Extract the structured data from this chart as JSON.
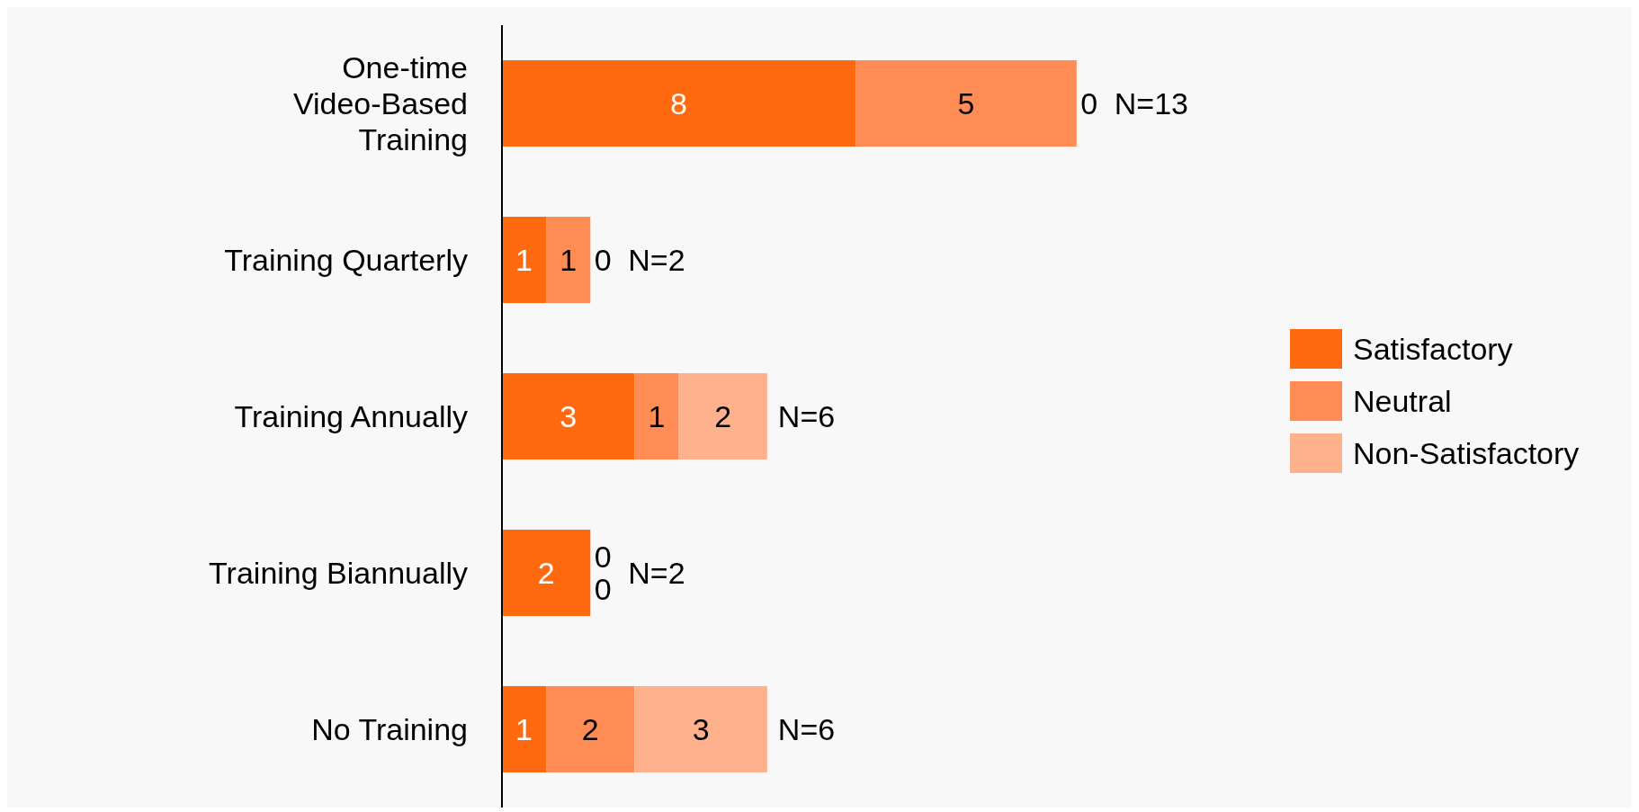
{
  "chart_data": {
    "type": "bar",
    "orientation": "horizontal",
    "stacked": true,
    "categories": [
      "One-time Video-Based Training",
      "Training Quarterly",
      "Training Annually",
      "Training Biannually",
      "No Training"
    ],
    "series": [
      {
        "name": "Satisfactory",
        "color": "#ff6a10",
        "values": [
          8,
          1,
          3,
          2,
          1
        ]
      },
      {
        "name": "Neutral",
        "color": "#ff8c55",
        "values": [
          5,
          1,
          1,
          0,
          2
        ]
      },
      {
        "name": "Non-Satisfactory",
        "color": "#ffb08c",
        "values": [
          0,
          0,
          2,
          0,
          3
        ]
      }
    ],
    "tick_labels": "y",
    "data_labels": true,
    "totals": [
      "N=13",
      "N=2",
      "N=6",
      "N=2",
      "N=6"
    ],
    "legend": "right"
  }
}
